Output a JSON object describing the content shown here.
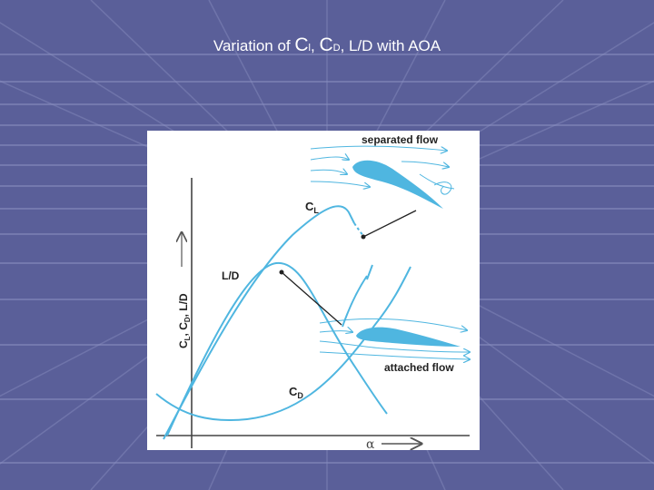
{
  "title": {
    "prefix": "Variation of ",
    "c1": "C",
    "c1_sub": "l",
    "sep1": ", ",
    "c2": "C",
    "c2_sub": "D",
    "suffix": ", L/D with AOA"
  },
  "diagram": {
    "label_separated": "separated flow",
    "label_attached": "attached flow",
    "label_cl": "C",
    "label_cl_sub": "L",
    "label_ld": "L/D",
    "label_cd": "C",
    "label_cd_sub": "D",
    "axis_y": "C",
    "axis_y_sub1": "L",
    "axis_y_mid": ", C",
    "axis_y_sub2": "D",
    "axis_y_end": ", L/D",
    "axis_x": "α"
  },
  "colors": {
    "background": "#5a5f99",
    "curve": "#4fb6e0",
    "airfoil": "#4fb6e0",
    "text": "#222222"
  }
}
